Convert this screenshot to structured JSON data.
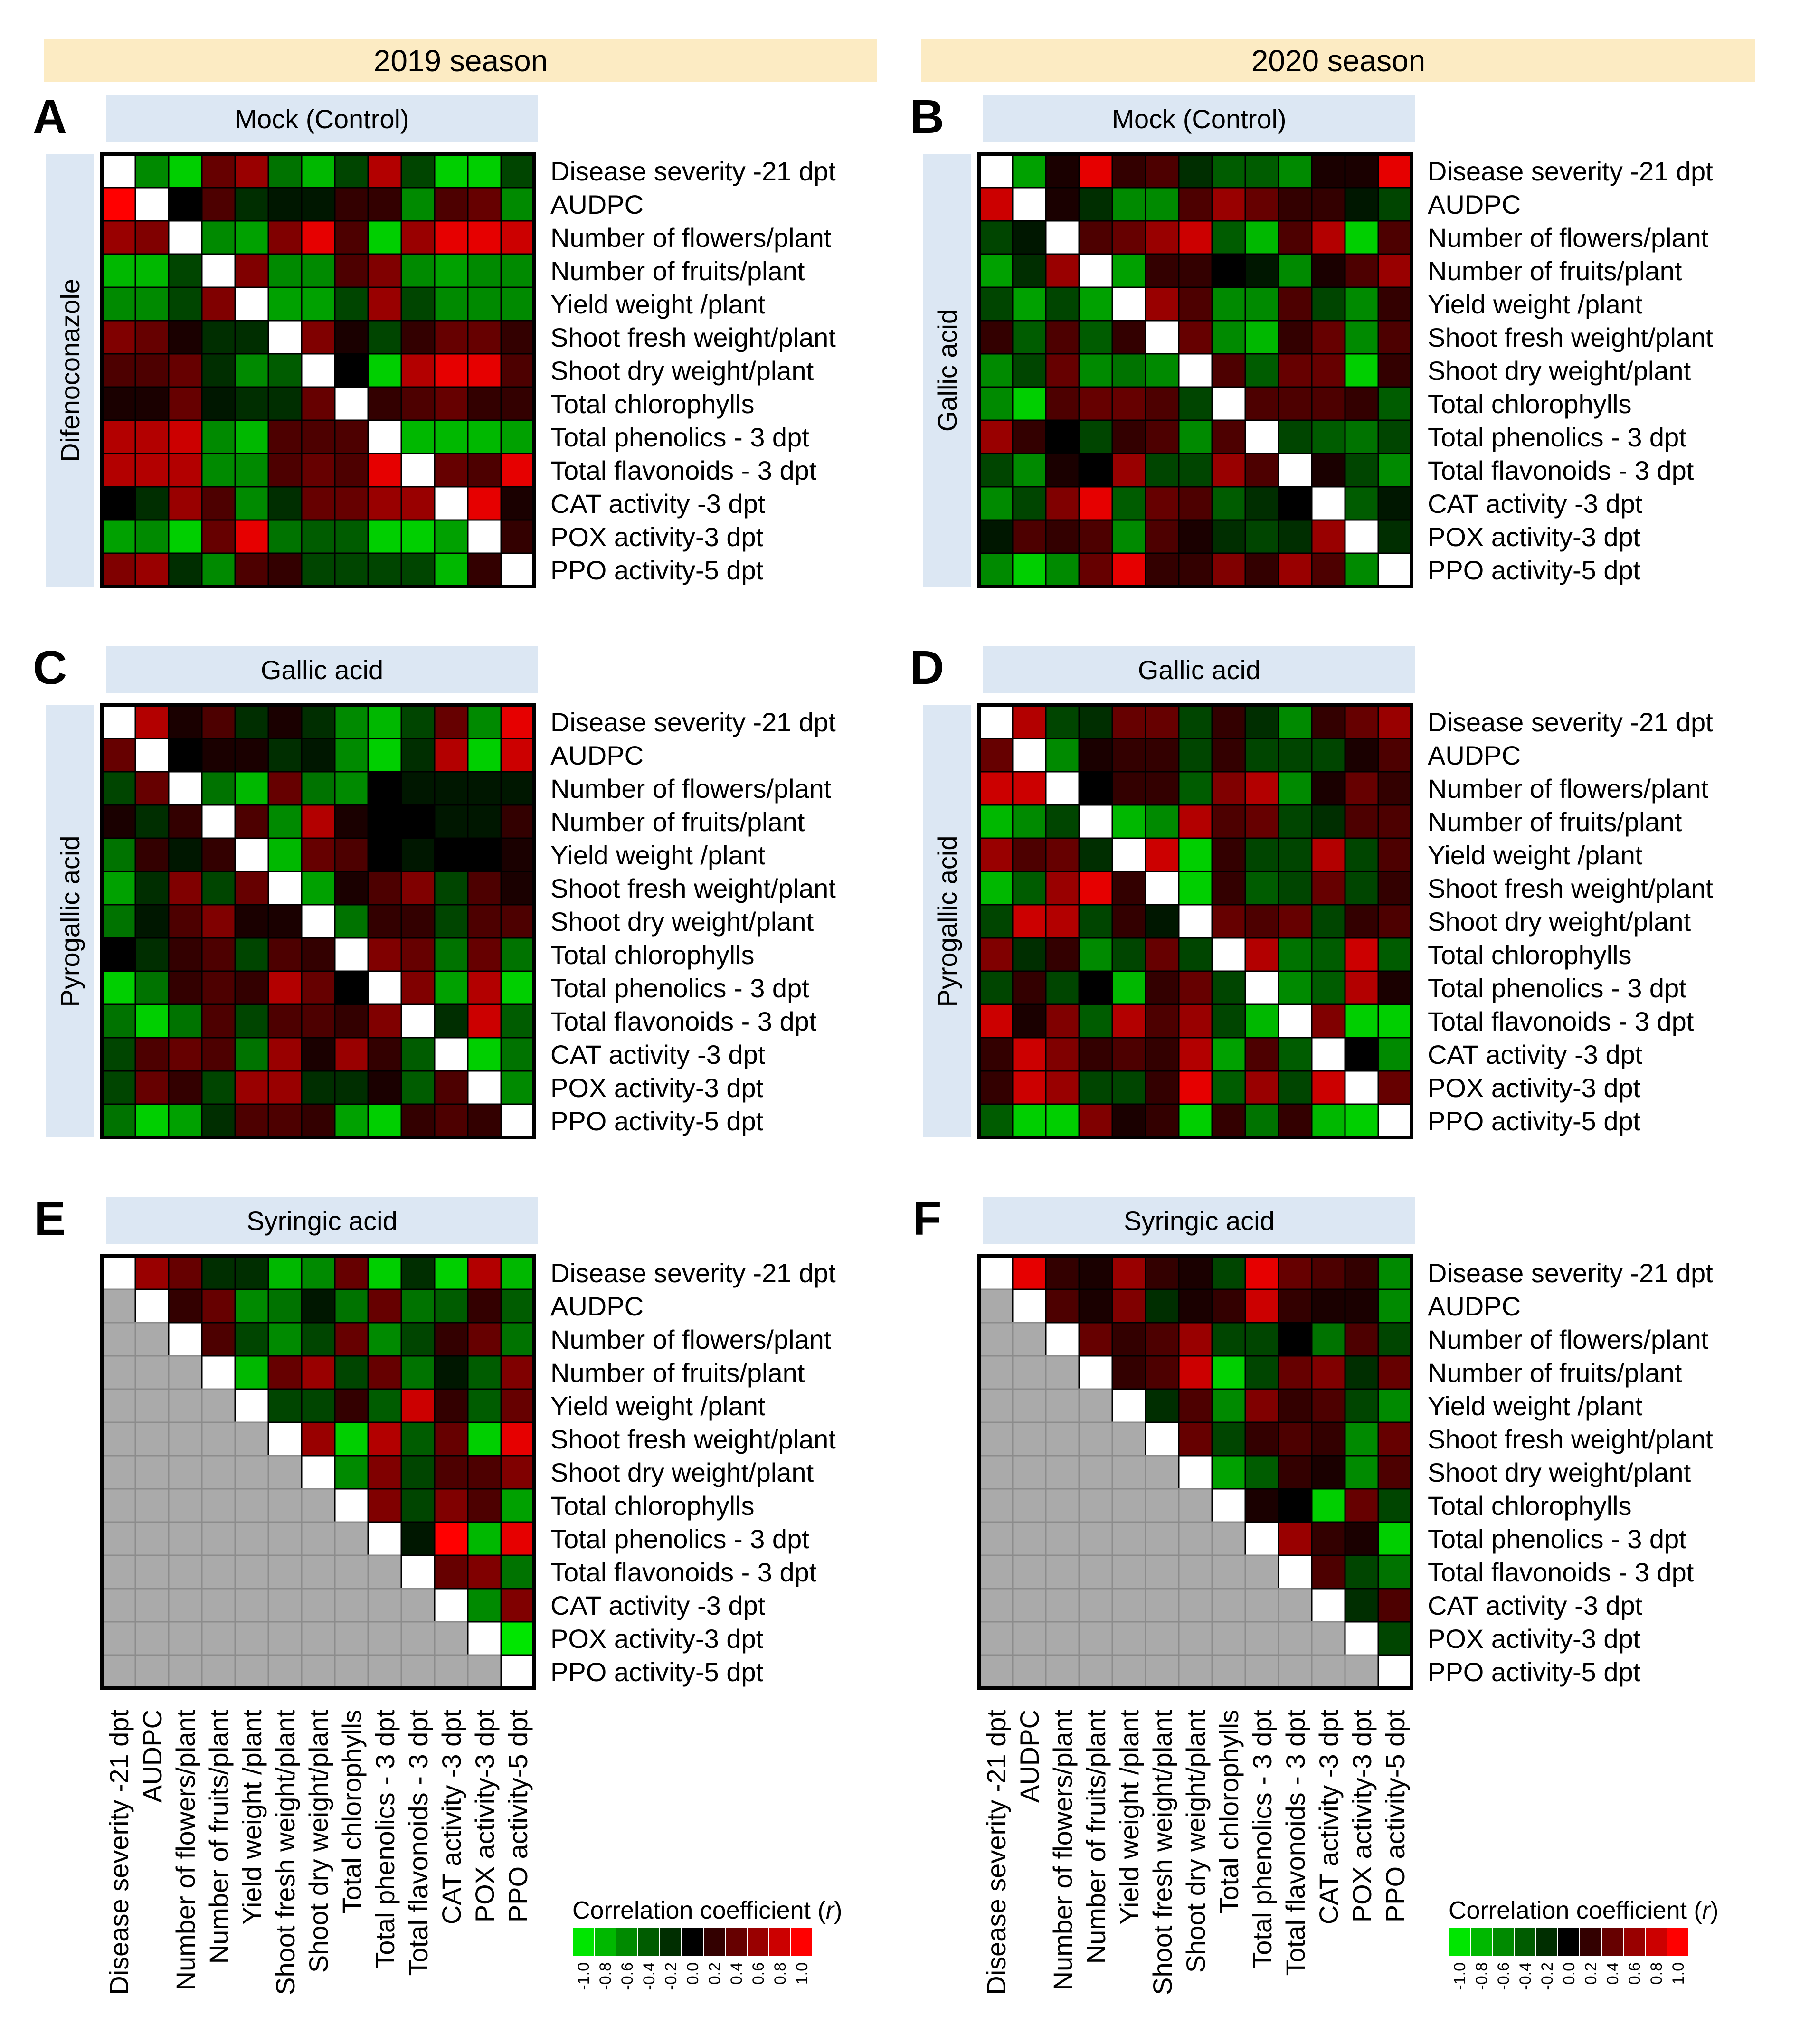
{
  "seasons": [
    "2019 season",
    "2020 season"
  ],
  "variables": [
    "Disease severity -21 dpt",
    "AUDPC",
    "Number of flowers/plant",
    "Number of fruits/plant",
    "Yield weight /plant",
    "Shoot fresh weight/plant",
    "Shoot dry weight/plant",
    "Total chlorophylls",
    "Total phenolics - 3 dpt",
    "Total flavonoids - 3 dpt",
    "CAT activity -3 dpt",
    "POX activity-3 dpt",
    "PPO activity-5 dpt"
  ],
  "colors": {
    "season_band": "#FCEBC3",
    "panel_label_bg": "#DCE7F3",
    "negative": "#00E600",
    "zero": "#000000",
    "positive": "#FF0000",
    "missing": "#AAAAAA",
    "diagonal": "#FFFFFF"
  },
  "legend": {
    "title": "Correlation coefficient (r)",
    "ticks": [
      "-1.0",
      "-0.8",
      "-0.6",
      "-0.4",
      "-0.2",
      "0.0",
      "0.2",
      "0.4",
      "0.6",
      "0.8",
      "1.0"
    ]
  },
  "chart_data": [
    {
      "type": "heatmap",
      "letter": "A",
      "season": "2019 season",
      "title": "Mock (Control)",
      "side_label": "Difenoconazole",
      "mode": "full",
      "matrix": [
        [
          1,
          -0.6,
          -0.9,
          0.4,
          0.6,
          -0.5,
          -0.8,
          -0.3,
          0.7,
          -0.3,
          -0.9,
          -0.9,
          -0.3
        ],
        [
          1,
          1,
          0.0,
          0.3,
          -0.2,
          -0.1,
          -0.1,
          0.2,
          0.2,
          -0.6,
          0.3,
          0.4,
          -0.6
        ],
        [
          0.6,
          0.5,
          1,
          -0.6,
          -0.7,
          0.5,
          0.9,
          0.3,
          -0.9,
          0.6,
          0.9,
          0.9,
          0.8
        ],
        [
          -0.8,
          -0.8,
          -0.3,
          1,
          0.5,
          -0.6,
          -0.6,
          0.3,
          0.5,
          -0.6,
          -0.7,
          -0.6,
          -0.6
        ],
        [
          -0.6,
          -0.6,
          -0.3,
          0.5,
          1,
          -0.7,
          -0.7,
          -0.3,
          0.6,
          -0.3,
          -0.6,
          -0.6,
          -0.6
        ],
        [
          0.5,
          0.4,
          0.1,
          -0.2,
          -0.2,
          1,
          0.5,
          0.1,
          -0.3,
          0.2,
          0.4,
          0.4,
          0.2
        ],
        [
          0.3,
          0.3,
          0.4,
          -0.2,
          -0.6,
          -0.4,
          1,
          0.0,
          -0.9,
          0.7,
          0.9,
          0.9,
          0.3
        ],
        [
          0.1,
          0.1,
          0.4,
          -0.1,
          -0.2,
          -0.2,
          0.4,
          1,
          0.2,
          0.3,
          0.4,
          0.2,
          0.2
        ],
        [
          0.7,
          0.7,
          0.8,
          -0.6,
          -0.8,
          0.3,
          0.3,
          0.3,
          1,
          -0.8,
          -0.8,
          -0.8,
          -0.7
        ],
        [
          0.7,
          0.7,
          0.7,
          -0.6,
          -0.6,
          0.3,
          0.4,
          0.3,
          0.9,
          1,
          0.4,
          0.3,
          0.9
        ],
        [
          0.0,
          -0.2,
          0.6,
          0.3,
          -0.6,
          -0.2,
          0.4,
          0.4,
          0.6,
          0.6,
          1,
          0.9,
          0.1
        ],
        [
          -0.7,
          -0.6,
          -0.9,
          0.4,
          0.9,
          -0.5,
          -0.4,
          -0.4,
          -0.9,
          -0.9,
          -0.7,
          1,
          0.2
        ],
        [
          0.5,
          0.6,
          -0.2,
          -0.6,
          0.3,
          0.2,
          -0.3,
          -0.3,
          -0.3,
          -0.3,
          -0.8,
          0.2,
          1
        ]
      ]
    },
    {
      "type": "heatmap",
      "letter": "B",
      "season": "2020 season",
      "title": "Mock (Control)",
      "side_label": "Gallic acid",
      "mode": "full",
      "matrix": [
        [
          1,
          -0.7,
          0.1,
          0.9,
          0.2,
          0.3,
          -0.2,
          -0.4,
          -0.4,
          -0.6,
          0.1,
          0.1,
          0.9
        ],
        [
          0.8,
          1,
          0.1,
          -0.2,
          -0.6,
          -0.6,
          0.3,
          0.6,
          0.4,
          0.2,
          0.2,
          -0.1,
          -0.3
        ],
        [
          -0.3,
          -0.1,
          1,
          0.3,
          0.4,
          0.6,
          0.8,
          -0.4,
          -0.8,
          0.3,
          0.7,
          -0.9,
          0.3
        ],
        [
          -0.7,
          -0.2,
          0.6,
          1,
          -0.7,
          0.2,
          0.2,
          0.0,
          -0.1,
          -0.6,
          0.1,
          0.3,
          0.6
        ],
        [
          -0.3,
          -0.7,
          -0.3,
          -0.7,
          1,
          0.6,
          0.3,
          -0.6,
          -0.6,
          0.3,
          -0.3,
          -0.6,
          0.2
        ],
        [
          0.2,
          -0.4,
          0.3,
          -0.4,
          0.2,
          1,
          0.4,
          -0.6,
          -0.8,
          0.2,
          0.4,
          -0.6,
          0.3
        ],
        [
          -0.6,
          -0.3,
          0.4,
          -0.6,
          -0.5,
          -0.6,
          1,
          0.3,
          -0.4,
          0.4,
          0.4,
          -0.9,
          0.2
        ],
        [
          -0.6,
          -0.9,
          0.3,
          0.4,
          0.4,
          0.3,
          -0.3,
          1,
          0.3,
          0.3,
          0.3,
          0.2,
          -0.4
        ],
        [
          0.6,
          0.2,
          0.0,
          -0.3,
          0.2,
          0.3,
          -0.6,
          0.3,
          1,
          -0.3,
          -0.4,
          -0.5,
          -0.3
        ],
        [
          -0.3,
          -0.6,
          0.1,
          0.0,
          0.6,
          -0.3,
          -0.3,
          0.6,
          0.3,
          1,
          0.1,
          -0.3,
          -0.6
        ],
        [
          -0.6,
          -0.3,
          0.5,
          0.9,
          -0.4,
          0.4,
          0.3,
          -0.4,
          -0.2,
          0.0,
          1,
          -0.4,
          -0.1
        ],
        [
          -0.1,
          0.3,
          0.2,
          0.3,
          -0.6,
          0.3,
          0.1,
          -0.2,
          -0.3,
          -0.2,
          0.6,
          1,
          -0.2
        ],
        [
          -0.6,
          -0.9,
          -0.6,
          0.4,
          0.9,
          0.2,
          0.2,
          0.5,
          0.2,
          0.6,
          0.3,
          -0.6,
          1
        ]
      ]
    },
    {
      "type": "heatmap",
      "letter": "C",
      "season": "2019 season",
      "title": "Gallic acid",
      "side_label": "Pyrogallic acid",
      "mode": "full",
      "matrix": [
        [
          1,
          0.7,
          0.1,
          0.3,
          -0.2,
          0.1,
          -0.2,
          -0.6,
          -0.8,
          -0.3,
          0.4,
          -0.6,
          0.9
        ],
        [
          0.4,
          1,
          0.0,
          0.1,
          0.1,
          -0.2,
          -0.1,
          -0.6,
          -0.9,
          -0.2,
          0.7,
          -0.9,
          0.8
        ],
        [
          -0.3,
          0.4,
          1,
          -0.5,
          -0.8,
          0.4,
          -0.5,
          -0.6,
          0.0,
          -0.1,
          -0.1,
          -0.1,
          -0.1
        ],
        [
          0.1,
          -0.2,
          0.2,
          1,
          0.3,
          -0.6,
          0.7,
          0.1,
          0.0,
          0.0,
          -0.1,
          -0.1,
          0.2
        ],
        [
          -0.5,
          0.2,
          -0.1,
          0.2,
          1,
          -0.8,
          0.4,
          0.3,
          0.0,
          -0.1,
          0.0,
          0.0,
          0.1
        ],
        [
          -0.7,
          -0.2,
          0.5,
          -0.3,
          0.4,
          1,
          -0.7,
          0.1,
          0.3,
          0.5,
          -0.3,
          0.3,
          0.1
        ],
        [
          -0.5,
          -0.1,
          0.3,
          0.5,
          0.1,
          0.1,
          1,
          -0.5,
          0.2,
          0.2,
          -0.3,
          0.3,
          0.3
        ],
        [
          0.0,
          -0.2,
          0.2,
          0.3,
          -0.3,
          0.3,
          0.2,
          1,
          0.5,
          0.4,
          -0.5,
          0.4,
          -0.5
        ],
        [
          -0.9,
          -0.5,
          0.2,
          0.3,
          0.2,
          0.7,
          0.4,
          0.0,
          1,
          0.5,
          -0.7,
          0.7,
          -0.9
        ],
        [
          -0.5,
          -0.9,
          -0.5,
          0.3,
          -0.3,
          0.3,
          0.3,
          0.2,
          0.5,
          1,
          -0.2,
          0.8,
          -0.4
        ],
        [
          -0.3,
          0.3,
          0.4,
          0.3,
          -0.5,
          0.6,
          0.1,
          0.6,
          0.2,
          -0.4,
          1,
          -0.9,
          -0.5
        ],
        [
          -0.3,
          0.4,
          0.2,
          -0.3,
          0.6,
          0.6,
          -0.2,
          -0.2,
          0.1,
          -0.4,
          0.3,
          1,
          -0.6
        ],
        [
          -0.5,
          -0.9,
          -0.7,
          -0.2,
          0.3,
          0.3,
          0.2,
          -0.7,
          -0.9,
          0.2,
          0.3,
          0.2,
          1
        ]
      ]
    },
    {
      "type": "heatmap",
      "letter": "D",
      "season": "2020 season",
      "title": "Gallic acid",
      "side_label": "Pyrogallic acid",
      "mode": "full",
      "matrix": [
        [
          1,
          0.7,
          -0.3,
          -0.2,
          0.4,
          0.4,
          -0.3,
          0.2,
          -0.2,
          -0.6,
          0.2,
          0.4,
          0.6
        ],
        [
          0.4,
          1,
          -0.6,
          0.1,
          0.2,
          0.2,
          -0.3,
          0.2,
          -0.3,
          -0.3,
          -0.3,
          0.1,
          0.3
        ],
        [
          0.8,
          0.8,
          1,
          0.0,
          0.2,
          0.2,
          -0.4,
          0.5,
          0.7,
          -0.6,
          0.1,
          0.4,
          0.2
        ],
        [
          -0.8,
          -0.6,
          -0.3,
          1,
          -0.8,
          -0.6,
          0.7,
          0.3,
          0.4,
          -0.3,
          -0.2,
          0.3,
          0.3
        ],
        [
          0.6,
          0.3,
          0.4,
          -0.2,
          1,
          0.8,
          -0.9,
          0.2,
          -0.3,
          -0.3,
          0.7,
          -0.3,
          0.3
        ],
        [
          -0.8,
          -0.4,
          0.6,
          0.9,
          0.2,
          1,
          -0.9,
          0.2,
          -0.4,
          -0.3,
          0.4,
          -0.3,
          0.2
        ],
        [
          -0.3,
          0.8,
          0.7,
          -0.3,
          0.2,
          -0.1,
          1,
          0.4,
          0.3,
          0.4,
          -0.3,
          0.2,
          0.3
        ],
        [
          0.5,
          -0.2,
          0.2,
          -0.6,
          -0.3,
          0.4,
          -0.3,
          1,
          0.7,
          -0.5,
          -0.4,
          0.8,
          -0.4
        ],
        [
          -0.3,
          0.2,
          -0.3,
          0.0,
          -0.8,
          0.2,
          0.4,
          -0.3,
          1,
          -0.6,
          -0.4,
          0.7,
          0.1
        ],
        [
          0.8,
          0.1,
          0.5,
          -0.4,
          0.7,
          0.3,
          0.6,
          -0.3,
          -0.8,
          1,
          0.5,
          -0.9,
          -0.9
        ],
        [
          0.2,
          0.8,
          0.5,
          0.2,
          0.3,
          0.2,
          0.7,
          -0.7,
          0.3,
          -0.4,
          1,
          0.0,
          -0.6
        ],
        [
          0.2,
          0.8,
          0.6,
          -0.3,
          -0.3,
          0.2,
          0.9,
          -0.4,
          0.6,
          -0.3,
          0.8,
          1,
          0.4
        ],
        [
          -0.4,
          -0.9,
          -0.9,
          0.5,
          0.1,
          0.2,
          -0.9,
          0.2,
          -0.5,
          0.2,
          -0.8,
          -0.9,
          1
        ]
      ]
    },
    {
      "type": "heatmap",
      "letter": "E",
      "season": "2019 season",
      "title": "Syringic acid",
      "side_label": "",
      "mode": "upper",
      "matrix": [
        [
          1,
          0.6,
          0.4,
          -0.2,
          -0.2,
          -0.8,
          -0.6,
          0.4,
          -0.9,
          -0.2,
          -0.9,
          0.7,
          -0.8
        ],
        [
          0,
          1,
          0.2,
          0.4,
          -0.6,
          -0.5,
          -0.1,
          -0.5,
          0.4,
          -0.5,
          -0.4,
          0.2,
          -0.4
        ],
        [
          0,
          0,
          1,
          0.3,
          -0.3,
          -0.6,
          -0.3,
          0.4,
          -0.6,
          -0.3,
          0.2,
          0.4,
          -0.5
        ],
        [
          0,
          0,
          0,
          1,
          -0.8,
          0.4,
          0.6,
          -0.3,
          0.4,
          -0.5,
          -0.1,
          -0.4,
          0.5
        ],
        [
          0,
          0,
          0,
          0,
          1,
          -0.3,
          -0.3,
          0.2,
          -0.4,
          0.8,
          0.2,
          -0.4,
          0.4
        ],
        [
          0,
          0,
          0,
          0,
          0,
          1,
          0.6,
          -0.9,
          0.7,
          -0.4,
          0.4,
          -0.9,
          0.9
        ],
        [
          0,
          0,
          0,
          0,
          0,
          0,
          1,
          -0.6,
          0.5,
          -0.3,
          0.3,
          0.3,
          0.5
        ],
        [
          0,
          0,
          0,
          0,
          0,
          0,
          0,
          1,
          0.5,
          -0.3,
          0.5,
          0.3,
          -0.7
        ],
        [
          0,
          0,
          0,
          0,
          0,
          0,
          0,
          0,
          1,
          -0.1,
          1.0,
          -0.8,
          0.9
        ],
        [
          0,
          0,
          0,
          0,
          0,
          0,
          0,
          0,
          0,
          1,
          0.4,
          0.5,
          -0.5
        ],
        [
          0,
          0,
          0,
          0,
          0,
          0,
          0,
          0,
          0,
          0,
          1,
          -0.6,
          0.5
        ],
        [
          0,
          0,
          0,
          0,
          0,
          0,
          0,
          0,
          0,
          0,
          0,
          1,
          -1.0
        ],
        [
          0,
          0,
          0,
          0,
          0,
          0,
          0,
          0,
          0,
          0,
          0,
          0,
          1
        ]
      ]
    },
    {
      "type": "heatmap",
      "letter": "F",
      "season": "2020 season",
      "title": "Syringic acid",
      "side_label": "",
      "mode": "upper",
      "matrix": [
        [
          1,
          0.9,
          0.2,
          0.1,
          0.6,
          0.2,
          0.1,
          -0.3,
          0.9,
          0.4,
          0.3,
          0.2,
          -0.6
        ],
        [
          0,
          1,
          0.3,
          0.1,
          0.5,
          -0.2,
          0.1,
          0.2,
          0.8,
          0.2,
          0.1,
          0.1,
          -0.6
        ],
        [
          0,
          0,
          1,
          0.4,
          0.2,
          0.3,
          0.6,
          -0.3,
          -0.3,
          0.0,
          -0.5,
          0.3,
          -0.3
        ],
        [
          0,
          0,
          0,
          1,
          0.2,
          0.3,
          0.8,
          -0.9,
          -0.3,
          0.4,
          0.5,
          -0.2,
          0.4
        ],
        [
          0,
          0,
          0,
          0,
          1,
          -0.2,
          0.3,
          -0.6,
          0.5,
          0.2,
          0.3,
          -0.3,
          -0.6
        ],
        [
          0,
          0,
          0,
          0,
          0,
          1,
          0.4,
          -0.3,
          0.2,
          0.3,
          0.2,
          -0.6,
          0.4
        ],
        [
          0,
          0,
          0,
          0,
          0,
          0,
          1,
          -0.7,
          -0.4,
          0.2,
          0.1,
          -0.6,
          0.3
        ],
        [
          0,
          0,
          0,
          0,
          0,
          0,
          0,
          1,
          0.1,
          0.0,
          -0.9,
          0.4,
          -0.3
        ],
        [
          0,
          0,
          0,
          0,
          0,
          0,
          0,
          0,
          1,
          0.6,
          0.2,
          0.1,
          -0.9
        ],
        [
          0,
          0,
          0,
          0,
          0,
          0,
          0,
          0,
          0,
          1,
          0.3,
          -0.3,
          -0.5
        ],
        [
          0,
          0,
          0,
          0,
          0,
          0,
          0,
          0,
          0,
          0,
          1,
          -0.2,
          0.3
        ],
        [
          0,
          0,
          0,
          0,
          0,
          0,
          0,
          0,
          0,
          0,
          0,
          1,
          -0.3
        ],
        [
          0,
          0,
          0,
          0,
          0,
          0,
          0,
          0,
          0,
          0,
          0,
          0,
          1
        ]
      ]
    }
  ]
}
